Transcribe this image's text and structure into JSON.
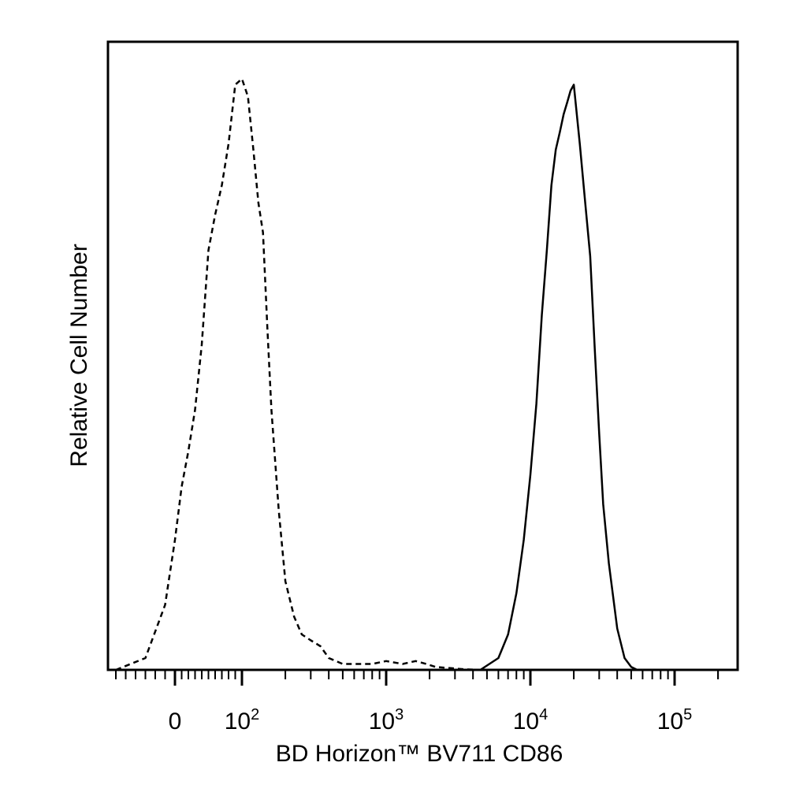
{
  "chart_data": {
    "type": "line",
    "xlabel": "BD Horizon™ BV711 CD86",
    "ylabel": "Relative Cell Number",
    "x_scale": "logicle",
    "xlim": [
      -60,
      250000
    ],
    "ylim": [
      0,
      1.0
    ],
    "grid": false,
    "legend": "none",
    "x_ticks": [
      {
        "value": 0,
        "base": "0",
        "exp": ""
      },
      {
        "value": 100,
        "base": "10",
        "exp": "2"
      },
      {
        "value": 1000,
        "base": "10",
        "exp": "3"
      },
      {
        "value": 10000,
        "base": "10",
        "exp": "4"
      },
      {
        "value": 100000,
        "base": "10",
        "exp": "5"
      }
    ],
    "series": [
      {
        "style": "dashed",
        "color": "#000000",
        "x": [
          -60,
          -30,
          -10,
          0,
          10,
          20,
          30,
          40,
          50,
          60,
          70,
          80,
          90,
          100,
          110,
          120,
          130,
          140,
          150,
          160,
          180,
          200,
          230,
          260,
          300,
          350,
          400,
          500,
          600,
          700,
          800,
          1000,
          1300,
          1600,
          1900,
          2200,
          2800,
          3500,
          4500
        ],
        "y": [
          0.0,
          0.02,
          0.11,
          0.22,
          0.31,
          0.37,
          0.44,
          0.55,
          0.71,
          0.77,
          0.82,
          0.89,
          0.99,
          1.0,
          0.97,
          0.88,
          0.79,
          0.74,
          0.58,
          0.44,
          0.27,
          0.15,
          0.09,
          0.06,
          0.05,
          0.04,
          0.02,
          0.01,
          0.01,
          0.01,
          0.01,
          0.015,
          0.01,
          0.015,
          0.01,
          0.005,
          0.003,
          0.001,
          0.0
        ]
      },
      {
        "style": "solid",
        "color": "#000000",
        "x": [
          4500,
          6000,
          7000,
          8000,
          9000,
          10000,
          11000,
          12000,
          13000,
          14000,
          15000,
          16000,
          17000,
          18000,
          19000,
          20000,
          22000,
          24000,
          26000,
          28000,
          30000,
          32000,
          35000,
          40000,
          45000,
          50000,
          55000
        ],
        "y": [
          0.0,
          0.02,
          0.06,
          0.13,
          0.22,
          0.33,
          0.45,
          0.6,
          0.71,
          0.82,
          0.88,
          0.91,
          0.94,
          0.96,
          0.98,
          0.99,
          0.89,
          0.79,
          0.7,
          0.54,
          0.4,
          0.28,
          0.18,
          0.07,
          0.02,
          0.005,
          0.0
        ]
      }
    ]
  }
}
